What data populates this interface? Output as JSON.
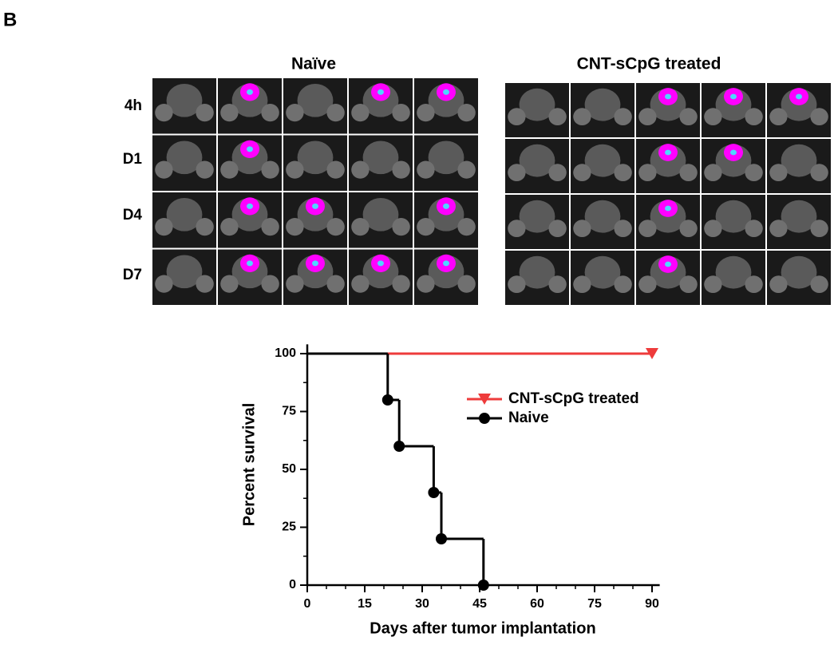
{
  "panel_label": "B",
  "image_grids": [
    {
      "title": "Naïve",
      "rows": [
        "4h",
        "D1",
        "D4",
        "D7"
      ]
    },
    {
      "title": "CNT-sCpG treated"
    }
  ],
  "chart_data": {
    "type": "line",
    "step": true,
    "xlabel": "Days after tumor implantation",
    "ylabel": "Percent survival",
    "xlim": [
      0,
      92
    ],
    "ylim": [
      0,
      104
    ],
    "xticks": [
      0,
      15,
      30,
      45,
      60,
      75,
      90
    ],
    "yticks": [
      0,
      25,
      50,
      75,
      100
    ],
    "xminorticks": [
      5,
      10,
      20,
      25,
      35,
      40,
      50,
      55,
      65,
      70,
      80,
      85
    ],
    "yminorticks": [
      12.5,
      37.5,
      62.5,
      87.5
    ],
    "legend": "right",
    "series": [
      {
        "name": "CNT-sCpG treated",
        "color": "#ee3b3b",
        "marker": "triangle-down",
        "x": [
          0,
          90
        ],
        "values": [
          100,
          100
        ]
      },
      {
        "name": "Naive",
        "color": "#000000",
        "marker": "circle",
        "x": [
          0,
          21,
          24,
          33,
          35,
          46
        ],
        "values": [
          100,
          80,
          60,
          40,
          20,
          0
        ]
      }
    ]
  }
}
